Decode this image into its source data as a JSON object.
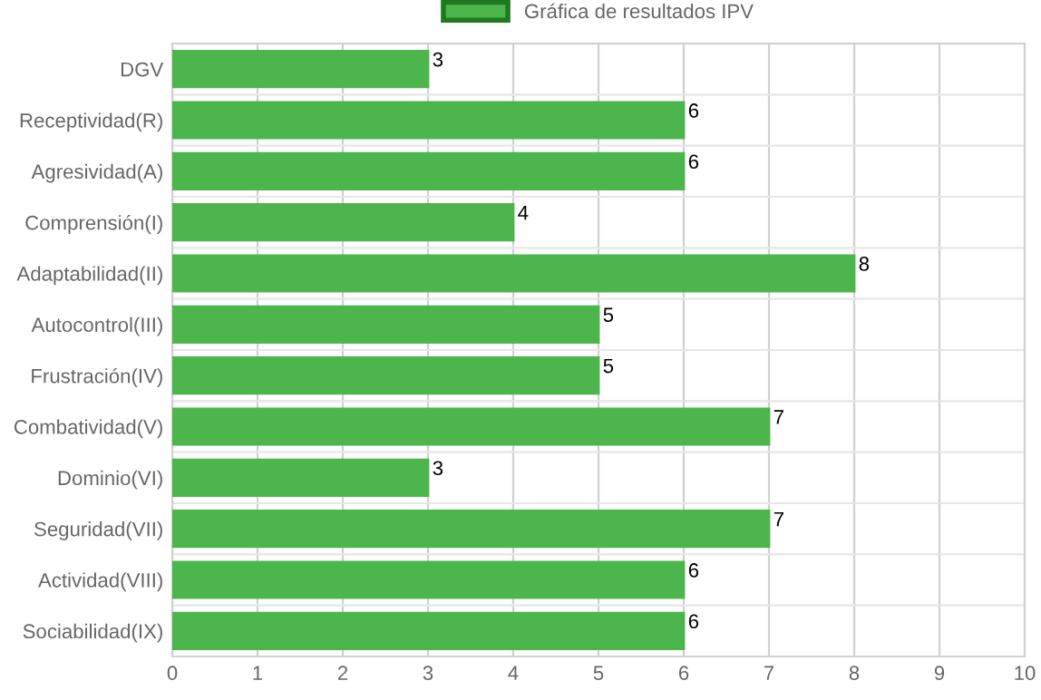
{
  "chart_data": {
    "type": "bar",
    "orientation": "horizontal",
    "categories": [
      "DGV",
      "Receptividad(R)",
      "Agresividad(A)",
      "Comprensión(I)",
      "Adaptabilidad(II)",
      "Autocontrol(III)",
      "Frustración(IV)",
      "Combatividad(V)",
      "Dominio(VI)",
      "Seguridad(VII)",
      "Actividad(VIII)",
      "Sociabilidad(IX)"
    ],
    "series": [
      {
        "name": "Gráfica de resultados IPV",
        "color": "#4cb64c",
        "values": [
          3,
          6,
          6,
          4,
          8,
          5,
          5,
          7,
          3,
          7,
          6,
          6
        ]
      }
    ],
    "xlim": [
      0,
      10
    ],
    "xticks": [
      0,
      1,
      2,
      3,
      4,
      5,
      6,
      7,
      8,
      9,
      10
    ],
    "grid": true,
    "legend": "top",
    "data_labels": true
  }
}
